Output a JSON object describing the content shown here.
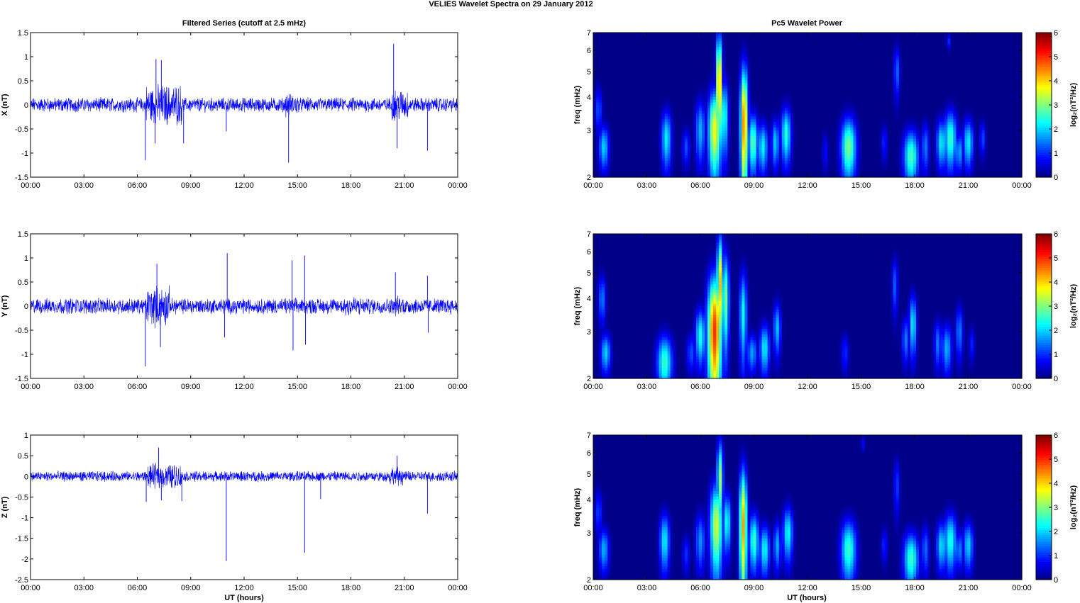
{
  "figure": {
    "suptitle": "VELIES Wavelet Spectra on 29 January   2012",
    "left_title": "Filtered Series (cutoff at 2.5 mHz)",
    "right_title": "Pc5 Wavelet Power",
    "xlabel": "UT (hours)"
  },
  "chart_data": [
    {
      "id": "x-series",
      "type": "line",
      "ylabel": "X (nT)",
      "ylim": [
        -1.5,
        1.5
      ],
      "yticks": [
        "-1.5",
        "-1",
        "-0.5",
        "0",
        "0.5",
        "1",
        "1.5"
      ],
      "xlim": [
        0,
        24
      ],
      "xticks": [
        "00:00",
        "03:00",
        "06:00",
        "09:00",
        "12:00",
        "15:00",
        "18:00",
        "21:00",
        "00:00"
      ],
      "line_color": "#0000ff",
      "noise_amplitude": 0.12,
      "bursts": [
        [
          6.5,
          8.5,
          2.8
        ],
        [
          14.3,
          15.0,
          1.6
        ],
        [
          20.3,
          21.2,
          2.2
        ]
      ],
      "spikes": [
        [
          6.45,
          -1.15
        ],
        [
          7.05,
          0.95
        ],
        [
          7.0,
          -0.8
        ],
        [
          7.35,
          0.93
        ],
        [
          8.6,
          -0.8
        ],
        [
          11.0,
          -0.55
        ],
        [
          14.5,
          -1.2
        ],
        [
          20.4,
          1.27
        ],
        [
          20.6,
          -0.9
        ],
        [
          22.3,
          -0.95
        ]
      ]
    },
    {
      "id": "y-series",
      "type": "line",
      "ylabel": "Y (nT)",
      "ylim": [
        -1.5,
        1.5
      ],
      "yticks": [
        "-1.5",
        "-1",
        "-0.5",
        "0",
        "0.5",
        "1",
        "1.5"
      ],
      "xlim": [
        0,
        24
      ],
      "xticks": [
        "00:00",
        "03:00",
        "06:00",
        "09:00",
        "12:00",
        "15:00",
        "18:00",
        "21:00",
        "00:00"
      ],
      "line_color": "#0000ff",
      "noise_amplitude": 0.13,
      "bursts": [
        [
          6.5,
          7.8,
          2.6
        ],
        [
          17.5,
          18.5,
          1.4
        ],
        [
          20.5,
          21.0,
          1.3
        ]
      ],
      "spikes": [
        [
          6.45,
          -1.25
        ],
        [
          7.1,
          0.88
        ],
        [
          7.3,
          -0.85
        ],
        [
          11.05,
          1.1
        ],
        [
          10.9,
          -0.65
        ],
        [
          14.7,
          0.95
        ],
        [
          14.75,
          -0.92
        ],
        [
          15.4,
          1.05
        ],
        [
          15.45,
          -0.8
        ],
        [
          20.5,
          0.7
        ],
        [
          22.3,
          0.63
        ],
        [
          22.35,
          -0.55
        ]
      ]
    },
    {
      "id": "z-series",
      "type": "line",
      "ylabel": "Z (nT)",
      "ylim": [
        -2.5,
        1
      ],
      "yticks": [
        "-2.5",
        "-2",
        "-1.5",
        "-1",
        "-0.5",
        "0",
        "0.5",
        "1"
      ],
      "xlim": [
        0,
        24
      ],
      "xticks": [
        "00:00",
        "03:00",
        "06:00",
        "09:00",
        "12:00",
        "15:00",
        "18:00",
        "21:00",
        "00:00"
      ],
      "line_color": "#0000ff",
      "noise_amplitude": 0.1,
      "bursts": [
        [
          6.6,
          8.5,
          2.4
        ],
        [
          20.2,
          21.0,
          1.8
        ]
      ],
      "spikes": [
        [
          6.5,
          -0.62
        ],
        [
          7.2,
          0.7
        ],
        [
          7.35,
          -0.58
        ],
        [
          8.5,
          -0.6
        ],
        [
          11.0,
          -2.05
        ],
        [
          15.4,
          -1.85
        ],
        [
          16.3,
          -0.55
        ],
        [
          20.6,
          0.5
        ],
        [
          22.3,
          -0.9
        ]
      ]
    },
    {
      "id": "x-power",
      "type": "heatmap",
      "ylabel": "freq (mHz)",
      "yscale": "log",
      "ylim": [
        2,
        7
      ],
      "yticks": [
        "2",
        "3",
        "4",
        "5",
        "6",
        "7"
      ],
      "xlim": [
        0,
        24
      ],
      "xticks": [
        "00:00",
        "03:00",
        "06:00",
        "09:00",
        "12:00",
        "15:00",
        "18:00",
        "21:00",
        "00:00"
      ],
      "colorbar": {
        "label": "log₂(nT²/Hz)",
        "range": [
          0,
          6
        ],
        "ticks": [
          "0",
          "1",
          "2",
          "3",
          "4",
          "5",
          "6"
        ]
      },
      "blobs": [
        [
          0.3,
          3.6,
          0.15,
          0.5,
          1.2
        ],
        [
          0.6,
          2.6,
          0.2,
          0.35,
          2.0
        ],
        [
          4.1,
          2.8,
          0.2,
          0.5,
          2.2
        ],
        [
          5.2,
          2.6,
          0.15,
          0.3,
          1.2
        ],
        [
          6.0,
          3.0,
          0.2,
          0.6,
          1.8
        ],
        [
          6.8,
          3.0,
          0.25,
          0.8,
          3.8
        ],
        [
          7.05,
          4.5,
          0.12,
          1.5,
          4.5
        ],
        [
          7.35,
          3.4,
          0.15,
          0.8,
          2.5
        ],
        [
          8.45,
          3.2,
          0.15,
          1.3,
          4.6
        ],
        [
          8.95,
          2.7,
          0.2,
          0.5,
          2.8
        ],
        [
          9.5,
          2.6,
          0.2,
          0.4,
          2.2
        ],
        [
          10.2,
          2.7,
          0.15,
          0.4,
          2.0
        ],
        [
          10.8,
          2.9,
          0.2,
          0.5,
          2.5
        ],
        [
          13.0,
          2.5,
          0.12,
          0.3,
          0.8
        ],
        [
          14.3,
          2.6,
          0.3,
          0.5,
          3.0
        ],
        [
          16.3,
          2.7,
          0.12,
          0.3,
          1.0
        ],
        [
          17.0,
          5.0,
          0.12,
          0.8,
          1.4
        ],
        [
          17.8,
          2.4,
          0.3,
          0.4,
          2.7
        ],
        [
          18.6,
          2.6,
          0.15,
          0.4,
          1.5
        ],
        [
          19.5,
          2.7,
          0.2,
          0.4,
          2.2
        ],
        [
          20.0,
          2.8,
          0.25,
          0.5,
          2.6
        ],
        [
          20.5,
          2.5,
          0.15,
          0.3,
          1.8
        ],
        [
          21.0,
          2.7,
          0.2,
          0.4,
          2.2
        ],
        [
          21.8,
          2.8,
          0.12,
          0.3,
          1.2
        ],
        [
          19.9,
          6.5,
          0.08,
          0.3,
          1.0
        ]
      ]
    },
    {
      "id": "y-power",
      "type": "heatmap",
      "ylabel": "freq (mHz)",
      "yscale": "log",
      "ylim": [
        2,
        7
      ],
      "yticks": [
        "2",
        "3",
        "4",
        "5",
        "6",
        "7"
      ],
      "xlim": [
        0,
        24
      ],
      "xticks": [
        "00:00",
        "03:00",
        "06:00",
        "09:00",
        "12:00",
        "15:00",
        "18:00",
        "21:00",
        "00:00"
      ],
      "colorbar": {
        "label": "log₂(nT²/Hz)",
        "range": [
          0,
          6
        ],
        "ticks": [
          "0",
          "1",
          "2",
          "3",
          "4",
          "5",
          "6"
        ]
      },
      "blobs": [
        [
          0.5,
          4.0,
          0.15,
          0.6,
          1.5
        ],
        [
          0.7,
          2.5,
          0.2,
          0.3,
          2.0
        ],
        [
          4.0,
          2.3,
          0.3,
          0.4,
          2.6
        ],
        [
          5.5,
          2.5,
          0.2,
          0.3,
          1.2
        ],
        [
          6.0,
          2.9,
          0.2,
          0.5,
          2.4
        ],
        [
          6.8,
          3.0,
          0.28,
          1.2,
          5.0
        ],
        [
          7.1,
          4.5,
          0.12,
          1.5,
          4.2
        ],
        [
          7.4,
          4.0,
          0.15,
          1.2,
          3.0
        ],
        [
          8.4,
          3.5,
          0.15,
          1.0,
          2.3
        ],
        [
          8.9,
          2.5,
          0.2,
          0.3,
          1.7
        ],
        [
          9.6,
          2.6,
          0.2,
          0.4,
          2.2
        ],
        [
          10.3,
          3.1,
          0.15,
          0.5,
          1.9
        ],
        [
          14.1,
          2.5,
          0.15,
          0.3,
          1.0
        ],
        [
          16.9,
          4.5,
          0.12,
          0.8,
          1.3
        ],
        [
          17.5,
          2.8,
          0.15,
          0.4,
          1.5
        ],
        [
          17.9,
          3.2,
          0.15,
          0.6,
          2.2
        ],
        [
          19.3,
          2.7,
          0.15,
          0.4,
          1.5
        ],
        [
          19.8,
          2.6,
          0.2,
          0.4,
          1.8
        ],
        [
          20.5,
          3.0,
          0.15,
          0.5,
          1.5
        ],
        [
          21.2,
          2.7,
          0.12,
          0.3,
          0.9
        ]
      ]
    },
    {
      "id": "z-power",
      "type": "heatmap",
      "ylabel": "freq (mHz)",
      "yscale": "log",
      "ylim": [
        2,
        7
      ],
      "yticks": [
        "2",
        "3",
        "4",
        "5",
        "6",
        "7"
      ],
      "xlim": [
        0,
        24
      ],
      "xticks": [
        "00:00",
        "03:00",
        "06:00",
        "09:00",
        "12:00",
        "15:00",
        "18:00",
        "21:00",
        "00:00"
      ],
      "colorbar": {
        "label": "log₂(nT²/Hz)",
        "range": [
          0,
          6
        ],
        "ticks": [
          "0",
          "1",
          "2",
          "3",
          "4",
          "5",
          "6"
        ]
      },
      "blobs": [
        [
          0.3,
          3.6,
          0.15,
          0.5,
          1.1
        ],
        [
          0.6,
          2.6,
          0.2,
          0.35,
          1.8
        ],
        [
          4.0,
          2.8,
          0.2,
          0.5,
          2.2
        ],
        [
          5.2,
          2.5,
          0.15,
          0.3,
          1.0
        ],
        [
          6.0,
          2.8,
          0.2,
          0.5,
          1.6
        ],
        [
          6.9,
          3.2,
          0.25,
          0.9,
          3.5
        ],
        [
          7.1,
          4.8,
          0.12,
          1.2,
          3.2
        ],
        [
          7.5,
          3.3,
          0.15,
          0.6,
          2.4
        ],
        [
          8.4,
          3.2,
          0.15,
          1.3,
          4.3
        ],
        [
          9.0,
          2.8,
          0.2,
          0.5,
          2.6
        ],
        [
          9.6,
          2.6,
          0.2,
          0.4,
          2.3
        ],
        [
          10.3,
          2.7,
          0.15,
          0.4,
          1.8
        ],
        [
          10.9,
          3.0,
          0.2,
          0.5,
          2.3
        ],
        [
          14.3,
          2.6,
          0.3,
          0.5,
          2.6
        ],
        [
          16.3,
          2.7,
          0.12,
          0.3,
          1.0
        ],
        [
          17.0,
          4.5,
          0.12,
          0.8,
          1.1
        ],
        [
          17.8,
          2.4,
          0.3,
          0.4,
          2.6
        ],
        [
          18.6,
          2.6,
          0.15,
          0.4,
          1.4
        ],
        [
          19.5,
          2.7,
          0.2,
          0.4,
          2.1
        ],
        [
          20.0,
          2.8,
          0.25,
          0.5,
          2.4
        ],
        [
          20.5,
          2.6,
          0.15,
          0.3,
          1.6
        ],
        [
          21.0,
          2.7,
          0.2,
          0.4,
          2.0
        ],
        [
          15.1,
          6.5,
          0.08,
          0.3,
          0.8
        ]
      ]
    }
  ]
}
